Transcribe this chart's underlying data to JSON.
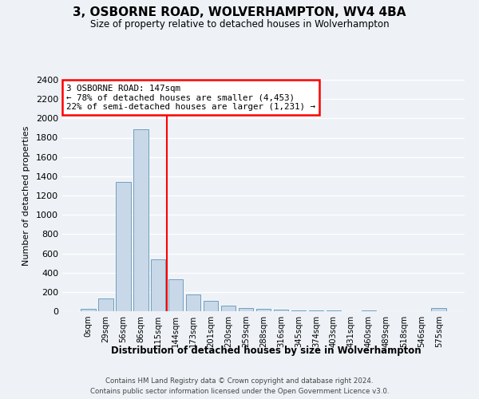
{
  "title": "3, OSBORNE ROAD, WOLVERHAMPTON, WV4 4BA",
  "subtitle": "Size of property relative to detached houses in Wolverhampton",
  "xlabel": "Distribution of detached houses by size in Wolverhampton",
  "ylabel": "Number of detached properties",
  "bar_labels": [
    "0sqm",
    "29sqm",
    "56sqm",
    "86sqm",
    "115sqm",
    "144sqm",
    "173sqm",
    "201sqm",
    "230sqm",
    "259sqm",
    "288sqm",
    "316sqm",
    "345sqm",
    "374sqm",
    "403sqm",
    "431sqm",
    "460sqm",
    "489sqm",
    "518sqm",
    "546sqm",
    "575sqm"
  ],
  "bar_values": [
    25,
    130,
    1340,
    1890,
    540,
    335,
    175,
    110,
    55,
    35,
    25,
    20,
    10,
    10,
    5,
    0,
    5,
    0,
    0,
    0,
    30
  ],
  "bar_color": "#c8d8e8",
  "bar_edge_color": "#5f96b8",
  "vline_color": "red",
  "annotation_text": "3 OSBORNE ROAD: 147sqm\n← 78% of detached houses are smaller (4,453)\n22% of semi-detached houses are larger (1,231) →",
  "annotation_box_color": "white",
  "annotation_box_edge": "red",
  "ylim": [
    0,
    2400
  ],
  "yticks": [
    0,
    200,
    400,
    600,
    800,
    1000,
    1200,
    1400,
    1600,
    1800,
    2000,
    2200,
    2400
  ],
  "footer_line1": "Contains HM Land Registry data © Crown copyright and database right 2024.",
  "footer_line2": "Contains public sector information licensed under the Open Government Licence v3.0.",
  "background_color": "#eef2f7",
  "grid_color": "#ffffff"
}
